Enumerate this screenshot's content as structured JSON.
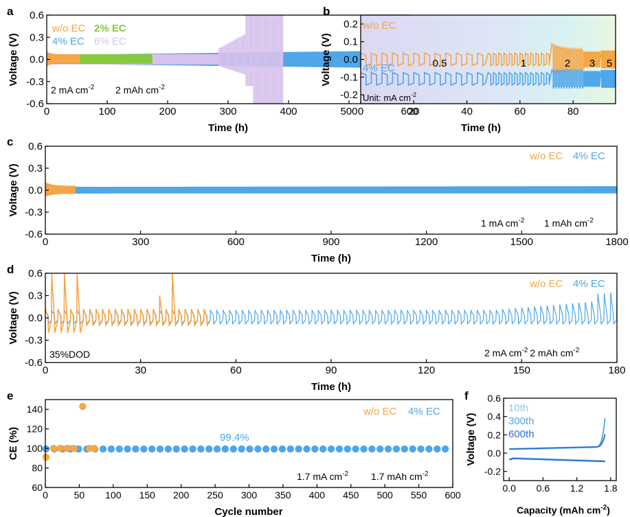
{
  "colors": {
    "orange": "#f5a646",
    "blue": "#4fa6e8",
    "green": "#86c93d",
    "lavender": "#d8c2ec",
    "light_blue": "#8fc8ef",
    "dark_blue": "#2e6fd6"
  },
  "chart_data": [
    {
      "panel": "a",
      "type": "line",
      "xlabel": "Time (h)",
      "ylabel": "Voltage (V)",
      "xlim": [
        0,
        600
      ],
      "ylim": [
        -0.6,
        0.6
      ],
      "xticks": [
        0,
        100,
        200,
        300,
        400,
        500,
        600
      ],
      "yticks": [
        -0.6,
        -0.3,
        0.0,
        0.3,
        0.6
      ],
      "series": [
        {
          "name": "w/o EC",
          "color": "orange",
          "x_end": 55,
          "amplitude": [
            0.07,
            0.05
          ]
        },
        {
          "name": "2% EC",
          "color": "green",
          "x_end": 175,
          "amplitude": [
            0.07,
            0.06
          ]
        },
        {
          "name": "4% EC",
          "color": "blue",
          "x_end": 595,
          "amplitude": [
            0.06,
            0.12
          ]
        },
        {
          "name": "6% EC",
          "color": "lavender",
          "x_end": 390,
          "amplitude": [
            0.07,
            0.6
          ]
        }
      ],
      "annotations": [
        "2 mA cm⁻²",
        "2 mAh cm⁻²"
      ]
    },
    {
      "panel": "b",
      "type": "line",
      "xlabel": "Time (h)",
      "ylabel": "Voltage (V)",
      "xlim": [
        0,
        96
      ],
      "ylim": [
        -0.25,
        0.25
      ],
      "xticks": [
        0,
        20,
        40,
        60,
        80
      ],
      "yticks": [
        -0.2,
        -0.1,
        0.0,
        0.1,
        0.2
      ],
      "rate_regions": [
        {
          "label": "0.5",
          "x": [
            0,
            47
          ]
        },
        {
          "label": "1",
          "x": [
            47,
            71
          ]
        },
        {
          "label": "2",
          "x": [
            71,
            84
          ]
        },
        {
          "label": "3",
          "x": [
            84,
            90
          ]
        },
        {
          "label": "5",
          "x": [
            90,
            96
          ]
        }
      ],
      "series": [
        {
          "name": "w/o EC",
          "color": "orange",
          "offset": 0.0
        },
        {
          "name": "4% EC",
          "color": "blue",
          "offset": -0.11
        }
      ],
      "annotations": [
        "Unit: mA cm⁻²"
      ]
    },
    {
      "panel": "c",
      "type": "line",
      "xlabel": "Time (h)",
      "ylabel": "Voltage (V)",
      "xlim": [
        0,
        1800
      ],
      "ylim": [
        -0.6,
        0.6
      ],
      "xticks": [
        0,
        300,
        600,
        900,
        1200,
        1500,
        1800
      ],
      "yticks": [
        -0.6,
        -0.3,
        0.0,
        0.3,
        0.6
      ],
      "series": [
        {
          "name": "w/o EC",
          "color": "orange",
          "x_end": 95,
          "amplitude": 0.08
        },
        {
          "name": "4% EC",
          "color": "blue",
          "x_end": 1800,
          "amplitude": 0.05
        }
      ],
      "annotations": [
        "1 mA cm⁻²",
        "1 mAh cm⁻²"
      ]
    },
    {
      "panel": "d",
      "type": "line",
      "xlabel": "Time (h)",
      "ylabel": "Voltage (V)",
      "xlim": [
        0,
        180
      ],
      "ylim": [
        -0.6,
        0.6
      ],
      "xticks": [
        0,
        30,
        60,
        90,
        120,
        150,
        180
      ],
      "yticks": [
        -0.6,
        -0.3,
        0.0,
        0.3,
        0.6
      ],
      "series": [
        {
          "name": "w/o EC",
          "color": "orange",
          "x_end": 50
        },
        {
          "name": "4% EC",
          "color": "blue",
          "x_end": 180
        }
      ],
      "annotations": [
        "35%DOD",
        "2 mA cm⁻² 2 mAh cm⁻²"
      ]
    },
    {
      "panel": "e",
      "type": "scatter",
      "xlabel": "Cycle number",
      "ylabel": "CE (%)",
      "xlim": [
        0,
        600
      ],
      "ylim": [
        60,
        150
      ],
      "xticks": [
        0,
        50,
        100,
        150,
        200,
        250,
        300,
        350,
        400,
        450,
        500,
        550,
        600
      ],
      "yticks": [
        60,
        80,
        100,
        120,
        140
      ],
      "series": [
        {
          "name": "w/o EC",
          "color": "orange",
          "x": [
            1,
            12,
            22,
            32,
            42,
            55,
            65,
            72
          ],
          "y": [
            91,
            100,
            100,
            100,
            100,
            143,
            100,
            100
          ]
        },
        {
          "name": "4% EC",
          "color": "blue",
          "x_start": 1,
          "x_end": 600,
          "x_step": 12,
          "y": 99.4
        }
      ],
      "annotations": [
        "99.4%",
        "1.7 mA cm⁻²",
        "1.7 mAh cm⁻²"
      ]
    },
    {
      "panel": "f",
      "type": "line",
      "xlabel": "Capacity (mAh cm⁻²)",
      "ylabel": "Voltage (V)",
      "xlim": [
        -0.1,
        1.9
      ],
      "ylim": [
        -0.3,
        0.6
      ],
      "xticks": [
        0.0,
        0.6,
        1.2,
        1.8
      ],
      "yticks": [
        -0.2,
        0.0,
        0.2,
        0.4,
        0.6
      ],
      "series": [
        {
          "name": "10th",
          "color": "light_blue"
        },
        {
          "name": "300th",
          "color": "blue"
        },
        {
          "name": "600th",
          "color": "dark_blue"
        }
      ]
    }
  ],
  "text": {
    "panel_a": "a",
    "panel_b": "b",
    "panel_c": "c",
    "panel_d": "d",
    "panel_e": "e",
    "panel_f": "f",
    "a_s1": "w/o EC",
    "a_s2": "2% EC",
    "a_s3": "4% EC",
    "a_s4": "6% EC",
    "a_cond1": "2 mA cm",
    "a_cond2": "2 mAh cm",
    "sup": "-2",
    "b_s1": "w/o EC",
    "b_s2": "4% EC",
    "b_unit": "Unit: mA cm",
    "b_r1": "0.5",
    "b_r2": "1",
    "b_r3": "2",
    "b_r4": "3",
    "b_r5": "5",
    "c_s1": "w/o EC",
    "c_s2": "4% EC",
    "c_cond1": "1 mA cm",
    "c_cond2": "1 mAh cm",
    "d_s1": "w/o EC",
    "d_s2": "4% EC",
    "d_dod": "35%DOD",
    "d_cond1": "2 mA cm",
    "d_cond2": "2 mAh cm",
    "e_s1": "w/o EC",
    "e_s2": "4% EC",
    "e_ce": "99.4%",
    "e_cond1": "1.7 mA cm",
    "e_cond2": "1.7 mAh cm",
    "f_s1": "10th",
    "f_s2": "300th",
    "f_s3": "600th",
    "time_h": "Time (h)",
    "voltage": "Voltage (V)",
    "ce": "CE (%)",
    "cycle": "Cycle number",
    "capacity": "Capacity (mAh cm",
    "capacity_end": ")"
  }
}
